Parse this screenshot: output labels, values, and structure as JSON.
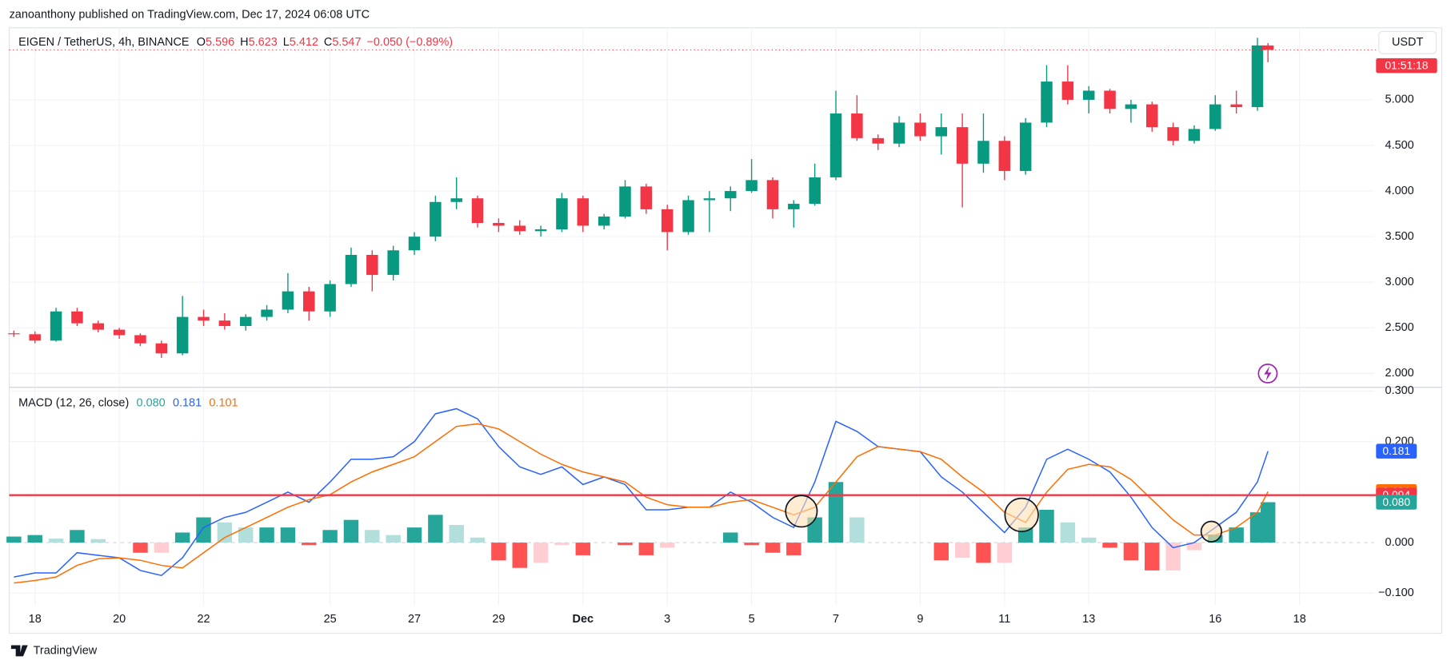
{
  "header": {
    "published": "zanoanthony published on TradingView.com, Dec 17, 2024 06:08 UTC"
  },
  "footer": {
    "brand": "TradingView"
  },
  "chart_data": [
    {
      "type": "candlestick",
      "title": "EIGEN / TetherUS, 4h, BINANCE",
      "ohlc_labels": [
        "O",
        "H",
        "L",
        "C"
      ],
      "change": "−0.050 (−0.89%)",
      "currency": "USDT",
      "countdown": "01:51:18",
      "up_color": "#089981",
      "down_color": "#f23645",
      "x": [
        17.5,
        18,
        18.5,
        19,
        19.5,
        20,
        20.5,
        21,
        21.5,
        22,
        22.5,
        23,
        23.5,
        24,
        24.5,
        25,
        25.5,
        26,
        26.5,
        27,
        27.5,
        28,
        28.5,
        29,
        29.5,
        30,
        30.5,
        31,
        31.5,
        32,
        32.5,
        33,
        33.5,
        34,
        34.5,
        35,
        35.5,
        36,
        36.5,
        37,
        37.5,
        38,
        38.5,
        39,
        39.5,
        40,
        40.5,
        41,
        41.5,
        42,
        42.5,
        43,
        43.5,
        44,
        44.5,
        45,
        45.5,
        46,
        46.5,
        47,
        47.25
      ],
      "candles": [
        [
          2.44,
          2.47,
          2.4,
          2.43
        ],
        [
          2.43,
          2.46,
          2.33,
          2.36
        ],
        [
          2.36,
          2.72,
          2.35,
          2.68
        ],
        [
          2.68,
          2.72,
          2.52,
          2.55
        ],
        [
          2.55,
          2.58,
          2.45,
          2.48
        ],
        [
          2.48,
          2.5,
          2.38,
          2.42
        ],
        [
          2.42,
          2.44,
          2.3,
          2.33
        ],
        [
          2.33,
          2.36,
          2.17,
          2.22
        ],
        [
          2.22,
          2.85,
          2.2,
          2.62
        ],
        [
          2.62,
          2.7,
          2.52,
          2.58
        ],
        [
          2.58,
          2.66,
          2.48,
          2.52
        ],
        [
          2.52,
          2.65,
          2.47,
          2.62
        ],
        [
          2.62,
          2.75,
          2.58,
          2.7
        ],
        [
          2.7,
          3.1,
          2.66,
          2.9
        ],
        [
          2.9,
          2.95,
          2.58,
          2.68
        ],
        [
          2.68,
          3.02,
          2.62,
          2.98
        ],
        [
          2.98,
          3.38,
          2.95,
          3.3
        ],
        [
          3.3,
          3.35,
          2.9,
          3.08
        ],
        [
          3.08,
          3.4,
          3.02,
          3.35
        ],
        [
          3.35,
          3.55,
          3.3,
          3.5
        ],
        [
          3.5,
          3.95,
          3.45,
          3.88
        ],
        [
          3.88,
          4.15,
          3.8,
          3.92
        ],
        [
          3.92,
          3.95,
          3.6,
          3.65
        ],
        [
          3.65,
          3.7,
          3.55,
          3.62
        ],
        [
          3.62,
          3.68,
          3.52,
          3.56
        ],
        [
          3.56,
          3.62,
          3.5,
          3.58
        ],
        [
          3.58,
          3.98,
          3.55,
          3.92
        ],
        [
          3.92,
          3.95,
          3.55,
          3.62
        ],
        [
          3.62,
          3.75,
          3.58,
          3.72
        ],
        [
          3.72,
          4.12,
          3.7,
          4.05
        ],
        [
          4.05,
          4.08,
          3.75,
          3.8
        ],
        [
          3.8,
          3.85,
          3.35,
          3.55
        ],
        [
          3.55,
          3.95,
          3.52,
          3.9
        ],
        [
          3.9,
          4.0,
          3.55,
          3.92
        ],
        [
          3.92,
          4.05,
          3.78,
          4.0
        ],
        [
          4.0,
          4.35,
          3.98,
          4.12
        ],
        [
          4.12,
          4.15,
          3.7,
          3.8
        ],
        [
          3.8,
          3.9,
          3.6,
          3.86
        ],
        [
          3.86,
          4.3,
          3.84,
          4.15
        ],
        [
          4.15,
          5.1,
          4.12,
          4.85
        ],
        [
          4.85,
          5.05,
          4.55,
          4.58
        ],
        [
          4.58,
          4.62,
          4.45,
          4.52
        ],
        [
          4.52,
          4.82,
          4.48,
          4.75
        ],
        [
          4.75,
          4.85,
          4.55,
          4.6
        ],
        [
          4.6,
          4.85,
          4.4,
          4.7
        ],
        [
          4.7,
          4.85,
          3.82,
          4.3
        ],
        [
          4.3,
          4.85,
          4.2,
          4.55
        ],
        [
          4.55,
          4.6,
          4.12,
          4.22
        ],
        [
          4.22,
          4.8,
          4.18,
          4.75
        ],
        [
          4.75,
          5.38,
          4.7,
          5.2
        ],
        [
          5.2,
          5.38,
          4.95,
          5.0
        ],
        [
          5.0,
          5.15,
          4.85,
          5.1
        ],
        [
          5.1,
          5.12,
          4.85,
          4.9
        ],
        [
          4.9,
          5.0,
          4.75,
          4.95
        ],
        [
          4.95,
          4.98,
          4.65,
          4.7
        ],
        [
          4.7,
          4.75,
          4.5,
          4.55
        ],
        [
          4.55,
          4.72,
          4.52,
          4.68
        ],
        [
          4.68,
          5.05,
          4.66,
          4.95
        ],
        [
          4.95,
          5.1,
          4.85,
          4.92
        ],
        [
          4.92,
          5.68,
          4.88,
          5.596
        ],
        [
          5.596,
          5.623,
          5.412,
          5.547
        ]
      ],
      "xlim": [
        17.39,
        49.77
      ],
      "ylim": [
        1.858,
        5.79
      ],
      "yticks": [
        {
          "value": 2,
          "label": "2.000"
        },
        {
          "value": 2.5,
          "label": "2.500"
        },
        {
          "value": 3,
          "label": "3.000"
        },
        {
          "value": 3.5,
          "label": "3.500"
        },
        {
          "value": 4,
          "label": "4.000"
        },
        {
          "value": 4.5,
          "label": "4.500"
        },
        {
          "value": 5,
          "label": "5.000"
        }
      ],
      "grid": true
    },
    {
      "type": "macd",
      "title": "MACD (12, 26, close)",
      "x": [
        17.5,
        18,
        18.5,
        19,
        19.5,
        20,
        20.5,
        21,
        21.5,
        22,
        22.5,
        23,
        23.5,
        24,
        24.5,
        25,
        25.5,
        26,
        26.5,
        27,
        27.5,
        28,
        28.5,
        29,
        29.5,
        30,
        30.5,
        31,
        31.5,
        32,
        32.5,
        33,
        33.5,
        34,
        34.5,
        35,
        35.5,
        36,
        36.5,
        37,
        37.5,
        38,
        38.5,
        39,
        39.5,
        40,
        40.5,
        41,
        41.5,
        42,
        42.5,
        43,
        43.5,
        44,
        44.5,
        45,
        45.5,
        46,
        46.5,
        47,
        47.25
      ],
      "histogram": {
        "colors": {
          "grow_above": "#26a69a",
          "fall_above": "#b2dfdb",
          "grow_below": "#ffcdd2",
          "fall_below": "#ff5252"
        },
        "values": [
          0.012,
          0.015,
          0.008,
          0.025,
          0.007,
          0,
          -0.02,
          -0.02,
          0.02,
          0.05,
          0.04,
          0.03,
          0.03,
          0.03,
          -0.005,
          0.025,
          0.045,
          0.025,
          0.015,
          0.03,
          0.055,
          0.035,
          0.01,
          -0.035,
          -0.05,
          -0.04,
          -0.005,
          -0.025,
          0,
          -0.005,
          -0.025,
          -0.01,
          0,
          0,
          0.02,
          -0.005,
          -0.02,
          -0.025,
          0.05,
          0.12,
          0.05,
          0,
          0,
          0,
          -0.035,
          -0.03,
          -0.04,
          -0.04,
          0.03,
          0.065,
          0.04,
          0.01,
          -0.01,
          -0.035,
          -0.055,
          -0.055,
          -0.015,
          0.015,
          0.03,
          0.06,
          0.08
        ],
        "value_labels": [
          null,
          null,
          null,
          null,
          null,
          null,
          null,
          null,
          null,
          null,
          null,
          null,
          null,
          null,
          null,
          null,
          null,
          null,
          null,
          null,
          null,
          null,
          null,
          null,
          null,
          null,
          null,
          null,
          null,
          null,
          null,
          null,
          null,
          null,
          null,
          null,
          null,
          null,
          null,
          null,
          null,
          null,
          null,
          null,
          null,
          null,
          null,
          null,
          null,
          null,
          null,
          null,
          null,
          null,
          null,
          null,
          null,
          null,
          null,
          null,
          "0.080"
        ],
        "label_color": "#26a69a"
      },
      "macd": {
        "color": "#2962ff",
        "values": [
          -0.068,
          -0.06,
          -0.06,
          -0.02,
          -0.025,
          -0.03,
          -0.055,
          -0.065,
          -0.03,
          0.03,
          0.05,
          0.06,
          0.08,
          0.1,
          0.08,
          0.12,
          0.165,
          0.165,
          0.17,
          0.2,
          0.255,
          0.265,
          0.245,
          0.19,
          0.15,
          0.135,
          0.15,
          0.115,
          0.13,
          0.115,
          0.065,
          0.065,
          0.07,
          0.07,
          0.1,
          0.08,
          0.05,
          0.03,
          0.12,
          0.24,
          0.22,
          0.19,
          0.185,
          0.18,
          0.13,
          0.1,
          0.06,
          0.02,
          0.07,
          0.165,
          0.185,
          0.165,
          0.14,
          0.09,
          0.03,
          -0.01,
          0,
          0.03,
          0.06,
          0.12,
          0.181
        ]
      },
      "signal": {
        "color": "#ff6d00",
        "values": [
          -0.08,
          -0.075,
          -0.068,
          -0.045,
          -0.032,
          -0.03,
          -0.035,
          -0.045,
          -0.05,
          -0.02,
          0.01,
          0.03,
          0.05,
          0.07,
          0.085,
          0.095,
          0.12,
          0.14,
          0.155,
          0.17,
          0.2,
          0.23,
          0.235,
          0.225,
          0.2,
          0.175,
          0.155,
          0.14,
          0.13,
          0.12,
          0.09,
          0.075,
          0.07,
          0.07,
          0.08,
          0.085,
          0.07,
          0.055,
          0.07,
          0.12,
          0.17,
          0.19,
          0.185,
          0.18,
          0.165,
          0.13,
          0.1,
          0.06,
          0.04,
          0.1,
          0.145,
          0.155,
          0.15,
          0.125,
          0.085,
          0.045,
          0.015,
          0.015,
          0.03,
          0.06,
          0.101
        ]
      },
      "hline": {
        "value": 0.094,
        "color": "#f23645"
      },
      "xlim": [
        17.39,
        49.77
      ],
      "ylim": [
        -0.1244,
        0.3055
      ],
      "yticks": [
        {
          "value": -0.1,
          "label": "−0.100"
        },
        {
          "value": 0,
          "label": "0.000"
        },
        {
          "value": 0.2,
          "label": "0.200"
        },
        {
          "value": 0.3,
          "label": "0.300"
        }
      ],
      "xticks": [
        18,
        20,
        22,
        25,
        27,
        29,
        {
          "value": 31,
          "label": "Dec"
        },
        {
          "value": 33,
          "label": "3"
        },
        {
          "value": 35,
          "label": "5"
        },
        {
          "value": 37,
          "label": "7"
        },
        {
          "value": 39,
          "label": "9"
        },
        {
          "value": 41,
          "label": "11"
        },
        {
          "value": 43,
          "label": "13"
        },
        {
          "value": 46,
          "label": "16"
        },
        {
          "value": 48,
          "label": "18"
        }
      ],
      "grid": true
    }
  ]
}
